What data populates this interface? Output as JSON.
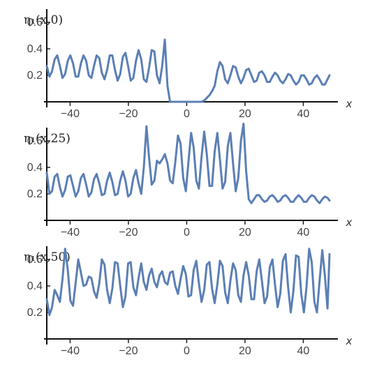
{
  "chart_data": [
    {
      "type": "line",
      "title": "η₁(x,0)",
      "xlabel": "x",
      "ylabel": "",
      "xlim": [
        -48,
        49
      ],
      "ylim": [
        0,
        0.7
      ],
      "xticks": [
        -40,
        -20,
        0,
        20,
        40
      ],
      "xtick_labels": [
        "−40",
        "−20",
        "0",
        "20",
        "40"
      ],
      "yticks": [
        0.2,
        0.4,
        0.6
      ],
      "ytick_labels": [
        "0.2",
        "0.4",
        "0.6"
      ],
      "grid": false,
      "series": [
        {
          "color": "#5b7fb5",
          "x": [
            -48,
            -47.1,
            -46.2,
            -45.3,
            -44.4,
            -43.5,
            -42.6,
            -41.7,
            -40.8,
            -39.9,
            -39,
            -38.1,
            -37.2,
            -36.3,
            -35.4,
            -34.5,
            -33.6,
            -32.7,
            -31.8,
            -30.9,
            -30,
            -29.1,
            -28.2,
            -27.3,
            -26.4,
            -25.5,
            -24.6,
            -23.7,
            -22.8,
            -21.9,
            -21,
            -20.1,
            -19.2,
            -18.3,
            -17.4,
            -16.5,
            -15.6,
            -14.7,
            -13.8,
            -12.9,
            -12,
            -11.1,
            -10.2,
            -9.3,
            -8.4,
            -7.5,
            -6.6,
            -5.7,
            -4.8,
            -3.9,
            -3,
            -2.1,
            -1.2,
            -0.3,
            0.6,
            1.5,
            2.4,
            3.3,
            4.2,
            5.1,
            6,
            6.9,
            7.8,
            8.7,
            9.6,
            10.5,
            11.4,
            12.3,
            13.2,
            14.1,
            15,
            15.9,
            16.8,
            17.7,
            18.6,
            19.5,
            20.4,
            21.3,
            22.2,
            23.1,
            24,
            24.9,
            25.8,
            26.7,
            27.6,
            28.5,
            29.4,
            30.3,
            31.2,
            32.1,
            33,
            33.9,
            34.8,
            35.7,
            36.6,
            37.5,
            38.4,
            39.3,
            40.2,
            41.1,
            42,
            42.9,
            43.8,
            44.7,
            45.6,
            46.5,
            47.4,
            48.3,
            49
          ],
          "y": [
            0.27,
            0.19,
            0.23,
            0.32,
            0.35,
            0.27,
            0.18,
            0.21,
            0.31,
            0.35,
            0.29,
            0.19,
            0.19,
            0.29,
            0.35,
            0.31,
            0.2,
            0.18,
            0.27,
            0.35,
            0.33,
            0.22,
            0.17,
            0.24,
            0.35,
            0.35,
            0.24,
            0.16,
            0.21,
            0.34,
            0.37,
            0.27,
            0.16,
            0.18,
            0.31,
            0.39,
            0.32,
            0.17,
            0.15,
            0.26,
            0.39,
            0.38,
            0.2,
            0.14,
            0.27,
            0.47,
            0.12,
            0,
            0,
            0,
            0,
            0,
            0,
            0,
            0,
            0,
            0,
            0,
            0,
            0,
            0.01,
            0.03,
            0.05,
            0.08,
            0.12,
            0.23,
            0.3,
            0.27,
            0.17,
            0.14,
            0.2,
            0.27,
            0.26,
            0.19,
            0.14,
            0.18,
            0.24,
            0.25,
            0.2,
            0.15,
            0.16,
            0.22,
            0.23,
            0.2,
            0.15,
            0.15,
            0.19,
            0.22,
            0.2,
            0.16,
            0.14,
            0.17,
            0.21,
            0.2,
            0.16,
            0.13,
            0.15,
            0.2,
            0.2,
            0.17,
            0.13,
            0.14,
            0.18,
            0.2,
            0.17,
            0.13,
            0.13,
            0.17,
            0.2
          ]
        }
      ]
    },
    {
      "type": "line",
      "title": "η₁(x,25)",
      "xlabel": "x",
      "ylabel": "",
      "xlim": [
        -48,
        49
      ],
      "ylim": [
        0,
        0.7
      ],
      "xticks": [
        -40,
        -20,
        0,
        20,
        40
      ],
      "xtick_labels": [
        "−40",
        "−20",
        "0",
        "20",
        "40"
      ],
      "yticks": [
        0.2,
        0.4,
        0.6
      ],
      "ytick_labels": [
        "0.2",
        "0.4",
        "0.6"
      ],
      "grid": false,
      "series": [
        {
          "color": "#5b7fb5",
          "x": [
            -48,
            -47.1,
            -46.2,
            -45.3,
            -44.4,
            -43.5,
            -42.6,
            -41.7,
            -40.8,
            -39.9,
            -39,
            -38.1,
            -37.2,
            -36.3,
            -35.4,
            -34.5,
            -33.6,
            -32.7,
            -31.8,
            -30.9,
            -30,
            -29.1,
            -28.2,
            -27.3,
            -26.4,
            -25.5,
            -24.6,
            -23.7,
            -22.8,
            -21.9,
            -21,
            -20.1,
            -19.2,
            -18.3,
            -17.4,
            -16.5,
            -15.6,
            -14.7,
            -13.8,
            -12.9,
            -12,
            -11.1,
            -10.2,
            -9.3,
            -8.4,
            -7.5,
            -6.6,
            -5.7,
            -4.8,
            -3.9,
            -3,
            -2.1,
            -1.2,
            -0.3,
            0.6,
            1.5,
            2.4,
            3.3,
            4.2,
            5.1,
            6,
            6.9,
            7.8,
            8.7,
            9.6,
            10.5,
            11.4,
            12.3,
            13.2,
            14.1,
            15,
            15.9,
            16.8,
            17.7,
            18.6,
            19.5,
            20.4,
            21.3,
            22.2,
            23.1,
            24,
            24.9,
            25.8,
            26.7,
            27.6,
            28.5,
            29.4,
            30.3,
            31.2,
            32.1,
            33,
            33.9,
            34.8,
            35.7,
            36.6,
            37.5,
            38.4,
            39.3,
            40.2,
            41.1,
            42,
            42.9,
            43.8,
            44.7,
            45.6,
            46.5,
            47.4,
            48.3,
            49
          ],
          "y": [
            0.36,
            0.2,
            0.22,
            0.33,
            0.35,
            0.25,
            0.18,
            0.23,
            0.33,
            0.34,
            0.26,
            0.18,
            0.22,
            0.32,
            0.35,
            0.27,
            0.18,
            0.21,
            0.31,
            0.35,
            0.28,
            0.19,
            0.2,
            0.3,
            0.36,
            0.29,
            0.19,
            0.2,
            0.3,
            0.37,
            0.3,
            0.18,
            0.2,
            0.32,
            0.38,
            0.28,
            0.2,
            0.4,
            0.71,
            0.47,
            0.27,
            0.3,
            0.45,
            0.43,
            0.46,
            0.5,
            0.43,
            0.3,
            0.28,
            0.44,
            0.64,
            0.58,
            0.32,
            0.22,
            0.44,
            0.66,
            0.55,
            0.3,
            0.24,
            0.48,
            0.67,
            0.5,
            0.26,
            0.26,
            0.52,
            0.66,
            0.46,
            0.24,
            0.29,
            0.56,
            0.66,
            0.43,
            0.22,
            0.32,
            0.6,
            0.73,
            0.37,
            0.16,
            0.13,
            0.16,
            0.19,
            0.19,
            0.16,
            0.14,
            0.15,
            0.18,
            0.19,
            0.17,
            0.14,
            0.15,
            0.18,
            0.19,
            0.17,
            0.14,
            0.14,
            0.17,
            0.19,
            0.17,
            0.14,
            0.14,
            0.17,
            0.19,
            0.18,
            0.15,
            0.13,
            0.16,
            0.18,
            0.17,
            0.15
          ]
        }
      ]
    },
    {
      "type": "line",
      "title": "η₁(x,50)",
      "xlabel": "x",
      "ylabel": "",
      "xlim": [
        -48,
        49
      ],
      "ylim": [
        0,
        0.7
      ],
      "xticks": [
        -40,
        -20,
        0,
        20,
        40
      ],
      "xtick_labels": [
        "−40",
        "−20",
        "0",
        "20",
        "40"
      ],
      "yticks": [
        0.2,
        0.4,
        0.6
      ],
      "ytick_labels": [
        "0.2",
        "0.4",
        "0.6"
      ],
      "grid": false,
      "series": [
        {
          "color": "#5b7fb5",
          "x": [
            -48,
            -47.1,
            -46.2,
            -45.3,
            -44.4,
            -43.5,
            -42.6,
            -41.7,
            -40.8,
            -39.9,
            -39,
            -38.1,
            -37.2,
            -36.3,
            -35.4,
            -34.5,
            -33.6,
            -32.7,
            -31.8,
            -30.9,
            -30,
            -29.1,
            -28.2,
            -27.3,
            -26.4,
            -25.5,
            -24.6,
            -23.7,
            -22.8,
            -21.9,
            -21,
            -20.1,
            -19.2,
            -18.3,
            -17.4,
            -16.5,
            -15.6,
            -14.7,
            -13.8,
            -12.9,
            -12,
            -11.1,
            -10.2,
            -9.3,
            -8.4,
            -7.5,
            -6.6,
            -5.7,
            -4.8,
            -3.9,
            -3,
            -2.1,
            -1.2,
            -0.3,
            0.6,
            1.5,
            2.4,
            3.3,
            4.2,
            5.1,
            6,
            6.9,
            7.8,
            8.7,
            9.6,
            10.5,
            11.4,
            12.3,
            13.2,
            14.1,
            15,
            15.9,
            16.8,
            17.7,
            18.6,
            19.5,
            20.4,
            21.3,
            22.2,
            23.1,
            24,
            24.9,
            25.8,
            26.7,
            27.6,
            28.5,
            29.4,
            30.3,
            31.2,
            32.1,
            33,
            33.9,
            34.8,
            35.7,
            36.6,
            37.5,
            38.4,
            39.3,
            40.2,
            41.1,
            42,
            42.9,
            43.8,
            44.7,
            45.6,
            46.5,
            47.4,
            48.3,
            49
          ],
          "y": [
            0.3,
            0.18,
            0.24,
            0.37,
            0.33,
            0.28,
            0.45,
            0.68,
            0.52,
            0.29,
            0.25,
            0.42,
            0.6,
            0.5,
            0.4,
            0.41,
            0.47,
            0.46,
            0.36,
            0.31,
            0.42,
            0.6,
            0.56,
            0.37,
            0.27,
            0.38,
            0.58,
            0.57,
            0.4,
            0.24,
            0.32,
            0.57,
            0.58,
            0.39,
            0.33,
            0.46,
            0.57,
            0.43,
            0.37,
            0.48,
            0.53,
            0.43,
            0.39,
            0.48,
            0.51,
            0.43,
            0.41,
            0.5,
            0.51,
            0.4,
            0.34,
            0.45,
            0.55,
            0.49,
            0.32,
            0.33,
            0.52,
            0.59,
            0.42,
            0.28,
            0.37,
            0.56,
            0.58,
            0.38,
            0.27,
            0.41,
            0.59,
            0.55,
            0.35,
            0.27,
            0.44,
            0.57,
            0.52,
            0.33,
            0.28,
            0.48,
            0.58,
            0.48,
            0.3,
            0.3,
            0.51,
            0.6,
            0.44,
            0.27,
            0.32,
            0.54,
            0.6,
            0.41,
            0.24,
            0.34,
            0.59,
            0.64,
            0.39,
            0.2,
            0.36,
            0.63,
            0.62,
            0.34,
            0.2,
            0.39,
            0.68,
            0.58,
            0.28,
            0.2,
            0.44,
            0.67,
            0.48,
            0.23,
            0.64
          ]
        }
      ]
    }
  ]
}
